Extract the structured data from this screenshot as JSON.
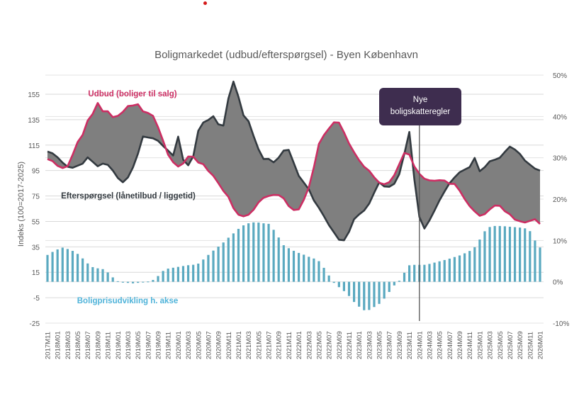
{
  "page": {
    "marker_color": "#d41a1a"
  },
  "chart_data": {
    "type": "line",
    "title": "Boligmarkedet (udbud/efterspørgsel) - Byen København",
    "ylabel": "Indeks (100=2017-2025)",
    "y2label": "",
    "xlabel": "",
    "ylim": [
      -25,
      165
    ],
    "y_ticks": [
      155,
      135,
      115,
      95,
      75,
      55,
      35,
      15,
      -5,
      -25
    ],
    "y2lim": [
      -10,
      50
    ],
    "y2_ticks": [
      "50%",
      "40%",
      "30%",
      "20%",
      "10%",
      "0%",
      "-10%"
    ],
    "y2_tick_values": [
      50,
      40,
      30,
      20,
      10,
      0,
      -10
    ],
    "grid": true,
    "x_start": "2017M11",
    "x_tick_labels": [
      "2017M11",
      "2018M01",
      "2018M03",
      "2018M05",
      "2018M07",
      "2018M09",
      "2018M11",
      "2019M01",
      "2019M03",
      "2019M05",
      "2019M07",
      "2019M09",
      "2019M11",
      "2020M01",
      "2020M03",
      "2020M05",
      "2020M07",
      "2020M09",
      "2020M11",
      "2021M01",
      "2021M03",
      "2021M05",
      "2021M07",
      "2021M09",
      "2021M11",
      "2022M01",
      "2022M03",
      "2022M05",
      "2022M07",
      "2022M09",
      "2022M11",
      "2023M01",
      "2023M03",
      "2023M05",
      "2023M07",
      "2023M09",
      "2023M11",
      "2024M01",
      "2024M03",
      "2024M05",
      "2024M07",
      "2024M09",
      "2024M11",
      "2025M01",
      "2025M03",
      "2025M05",
      "2025M07",
      "2025M09",
      "2025M11",
      "2026M01"
    ],
    "series": [
      {
        "name": "Udbud (boliger til salg)",
        "axis": "left",
        "color": "#cc2e63",
        "values": [
          104,
          103,
          101,
          97,
          97,
          98,
          101,
          116,
          118,
          123,
          134,
          135,
          143,
          149,
          141,
          145,
          137,
          137,
          138,
          140,
          144,
          147,
          146,
          148,
          142,
          141,
          140,
          138,
          132,
          122,
          116,
          106,
          102,
          99,
          97,
          102,
          106,
          107,
          103,
          100,
          100,
          95,
          93,
          88,
          84,
          79,
          76,
          70,
          62,
          60,
          59,
          59,
          62,
          65,
          70,
          73,
          75,
          75,
          76,
          76,
          74,
          72,
          65,
          64,
          63,
          68,
          75,
          83,
          95,
          113,
          120,
          124,
          128,
          132,
          135,
          131,
          124,
          117,
          112,
          106,
          102,
          98,
          96,
          92,
          88,
          85,
          84,
          85,
          87,
          93,
          100,
          108,
          111,
          105,
          97,
          93,
          89,
          88,
          87,
          87,
          88,
          86,
          88,
          84,
          85,
          81,
          77,
          71,
          67,
          64,
          60,
          59,
          61,
          64,
          67,
          68,
          67,
          63,
          62,
          57,
          56,
          55,
          54,
          55,
          56,
          57,
          53
        ]
      },
      {
        "name": "Efterspørgsel (lånetilbud / liggetid)",
        "axis": "left",
        "color": "#333a40",
        "values": [
          110,
          109,
          106,
          104,
          98,
          98,
          97,
          99,
          100,
          106,
          103,
          100,
          97,
          102,
          99,
          95,
          90,
          84,
          90,
          89,
          103,
          110,
          123,
          121,
          121,
          118,
          119,
          110,
          111,
          106,
          122,
          104,
          100,
          97,
          118,
          132,
          133,
          135,
          138,
          133,
          125,
          140,
          163,
          166,
          150,
          138,
          135,
          125,
          115,
          107,
          102,
          105,
          101,
          105,
          110,
          114,
          106,
          96,
          88,
          85,
          80,
          72,
          67,
          62,
          55,
          50,
          45,
          40,
          40,
          45,
          55,
          60,
          61,
          65,
          70,
          78,
          86,
          83,
          81,
          84,
          85,
          95,
          110,
          126,
          93,
          64,
          47,
          52,
          58,
          65,
          72,
          78,
          84,
          88,
          92,
          95,
          96,
          98,
          105,
          94,
          97,
          99,
          106,
          102,
          106,
          110,
          114,
          112,
          110,
          105,
          101,
          99,
          96,
          95
        ]
      },
      {
        "name": "Boligprisudvikling h. akse",
        "axis": "right",
        "type": "bar",
        "color": "#5aa9c0",
        "unit": "%",
        "values": [
          6.5,
          7.2,
          7.8,
          8.3,
          8.0,
          7.6,
          7.0,
          6.0,
          4.8,
          3.7,
          3.3,
          3.2,
          2.9,
          1.6,
          0.6,
          -0.2,
          -0.2,
          -0.3,
          -0.4,
          -0.2,
          -0.1,
          0.1,
          0.5,
          1.5,
          2.7,
          3.2,
          3.4,
          3.6,
          3.8,
          4.0,
          4.1,
          4.2,
          5.1,
          6.2,
          7.2,
          8.2,
          9.0,
          10.2,
          11.2,
          12.2,
          13.3,
          13.9,
          14.3,
          14.4,
          14.3,
          14.1,
          14.0,
          12.3,
          10.5,
          8.7,
          8.1,
          7.5,
          7.0,
          6.6,
          6.1,
          5.7,
          5.3,
          3.8,
          2.1,
          0.1,
          -1.0,
          -1.8,
          -2.9,
          -4.1,
          -5.7,
          -6.3,
          -7.3,
          -6.5,
          -5.9,
          -5.1,
          -3.7,
          -2.1,
          -0.6,
          0.4,
          2.4,
          4.1,
          4.1,
          4.1,
          4.1,
          4.3,
          4.6,
          4.9,
          5.2,
          5.5,
          5.9,
          6.2,
          6.7,
          7.2,
          7.8,
          9.0,
          11.4,
          12.9,
          13.5,
          13.5,
          13.5,
          13.4,
          13.3,
          13.2,
          13.1,
          12.9,
          12.2,
          9.9,
          8.3
        ]
      }
    ],
    "annotations": {
      "supply_label": "Udbud (boliger til salg)",
      "demand_label": "Efterspørgsel (lånetilbud / liggetid)",
      "price_label": "Boligprisudvikling h. akse",
      "callout_line1": "Nye",
      "callout_line2": "boligskatteregler",
      "callout_month": "2024M01",
      "callout_color": "#3e2d4f"
    },
    "fill_color": "#7f7f7f"
  }
}
